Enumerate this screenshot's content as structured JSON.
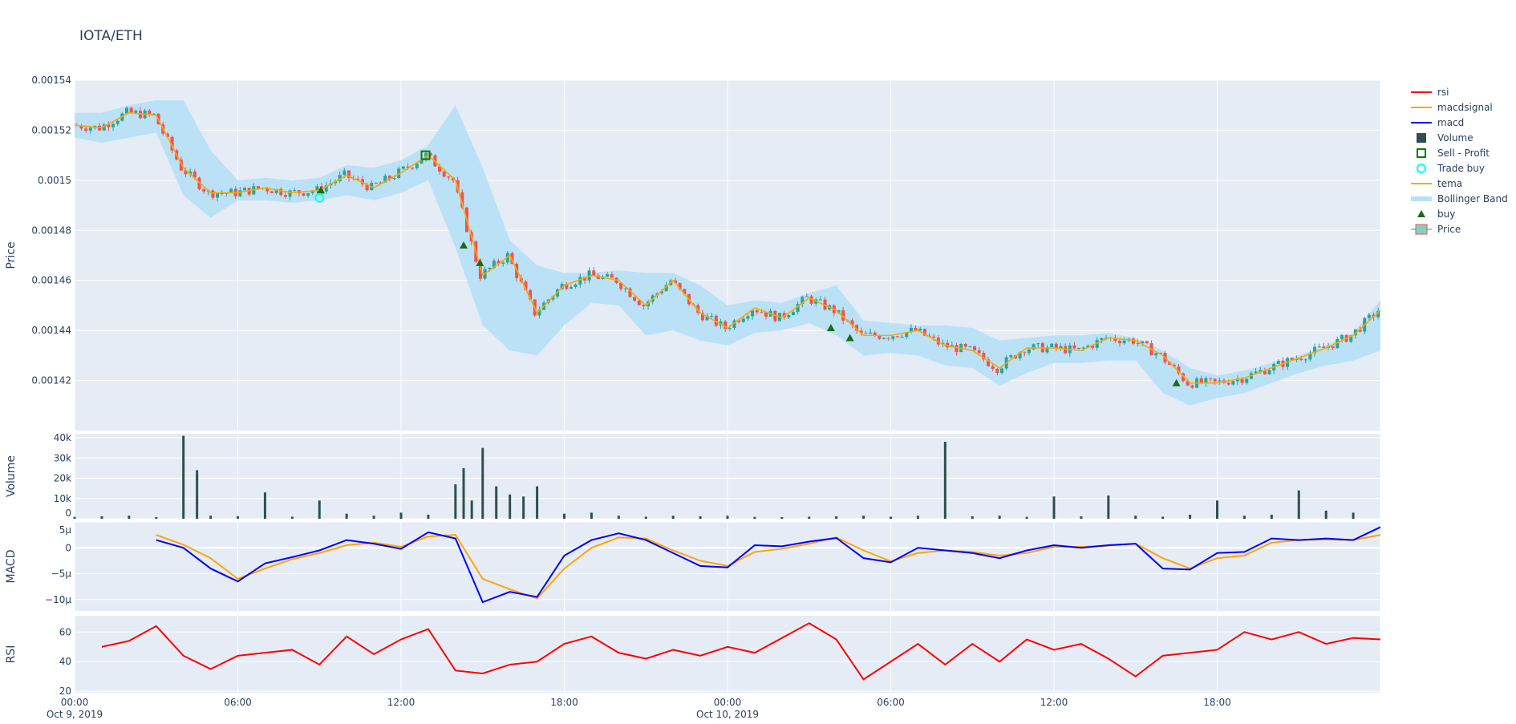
{
  "title": "IOTA/ETH",
  "colors": {
    "bg": "#e5ecf6",
    "up": "#26a69a",
    "down": "#ef5350",
    "bb": "#b8e0f7",
    "tema": "#ffa500",
    "macd": "#0000ff",
    "signal": "#ffa500",
    "rsi": "#ff0000",
    "volume": "#2f4f4f",
    "buy": "#1a6b1a",
    "sell": "#008000",
    "tradebuy": "#00ffff"
  },
  "legend": [
    "rsi",
    "macdsignal",
    "macd",
    "Volume",
    "Sell - Profit",
    "Trade buy",
    "tema",
    "Bollinger Band",
    "buy",
    "Price"
  ],
  "chart_data": [
    {
      "type": "candlestick",
      "ylabel": "Price",
      "ylim": [
        0.0014,
        0.00154
      ],
      "yticks": [
        "0.00142",
        "0.00144",
        "0.00146",
        "0.00148",
        "0.0015",
        "0.00152",
        "0.00154"
      ],
      "xticks": [
        "00:00\nOct 9, 2019",
        "06:00",
        "12:00",
        "18:00",
        "00:00\nOct 10, 2019",
        "06:00",
        "12:00",
        "18:00"
      ],
      "x_hours_range": [
        0,
        48
      ],
      "close": [
        0.001522,
        0.001521,
        0.001527,
        0.001526,
        0.001505,
        0.001495,
        0.001495,
        0.001497,
        0.001495,
        0.001496,
        0.001502,
        0.001497,
        0.001503,
        0.00151,
        0.0015,
        0.001462,
        0.00147,
        0.001447,
        0.001458,
        0.001462,
        0.00146,
        0.00145,
        0.00146,
        0.001447,
        0.001441,
        0.001449,
        0.001445,
        0.001453,
        0.001448,
        0.001438,
        0.001438,
        0.00144,
        0.001434,
        0.001432,
        0.001425,
        0.001433,
        0.001433,
        0.001432,
        0.001437,
        0.001436,
        0.00143,
        0.001419,
        0.001419,
        0.001421,
        0.001425,
        0.001429,
        0.001433,
        0.001438,
        0.001448
      ],
      "bb_upper": [
        0.001527,
        0.001527,
        0.00153,
        0.001532,
        0.001532,
        0.001512,
        0.0015,
        0.001501,
        0.0015,
        0.001501,
        0.001506,
        0.001505,
        0.001508,
        0.001514,
        0.00153,
        0.001505,
        0.001476,
        0.001466,
        0.001463,
        0.001463,
        0.001464,
        0.001463,
        0.001463,
        0.001458,
        0.00145,
        0.001452,
        0.001451,
        0.001455,
        0.001458,
        0.001444,
        0.001443,
        0.001442,
        0.001442,
        0.001441,
        0.001436,
        0.001437,
        0.001438,
        0.001438,
        0.001439,
        0.001437,
        0.001432,
        0.001425,
        0.001422,
        0.001424,
        0.001427,
        0.00143,
        0.001434,
        0.001439,
        0.001452
      ],
      "bb_lower": [
        0.001517,
        0.001515,
        0.001517,
        0.001519,
        0.001494,
        0.001485,
        0.001492,
        0.001492,
        0.001491,
        0.001492,
        0.001494,
        0.001492,
        0.001495,
        0.0015,
        0.001473,
        0.001442,
        0.001432,
        0.00143,
        0.001442,
        0.001451,
        0.00145,
        0.001438,
        0.00144,
        0.001436,
        0.001434,
        0.001439,
        0.00144,
        0.001443,
        0.001438,
        0.00143,
        0.001431,
        0.00143,
        0.001426,
        0.001425,
        0.001418,
        0.001423,
        0.001427,
        0.001427,
        0.001428,
        0.001428,
        0.001415,
        0.00141,
        0.001413,
        0.001415,
        0.001419,
        0.001423,
        0.001426,
        0.001428,
        0.001432
      ],
      "buy": [
        [
          9.05,
          0.001496
        ],
        [
          14.3,
          0.001474
        ],
        [
          14.9,
          0.001467
        ],
        [
          27.8,
          0.001441
        ],
        [
          28.5,
          0.001437
        ],
        [
          40.5,
          0.001419
        ]
      ],
      "trade_buy": [
        [
          9.0,
          0.001493
        ]
      ],
      "sell_profit": [
        [
          12.9,
          0.00151
        ]
      ]
    },
    {
      "type": "bar",
      "ylabel": "Volume",
      "ylim": [
        0,
        42000
      ],
      "yticks": [
        "0",
        "10k",
        "20k",
        "30k",
        "40k"
      ],
      "x": [
        0,
        1,
        2,
        3,
        4,
        4.5,
        5,
        6,
        7,
        8,
        9,
        10,
        11,
        12,
        13,
        14,
        14.3,
        14.6,
        15,
        15.5,
        16,
        16.5,
        17,
        18,
        19,
        20,
        21,
        22,
        23,
        24,
        25,
        26,
        27,
        28,
        29,
        30,
        31,
        32,
        33,
        34,
        35,
        36,
        37,
        38,
        39,
        40,
        41,
        42,
        43,
        44,
        45,
        46,
        47
      ],
      "values": [
        900,
        1200,
        1500,
        800,
        41000,
        24000,
        1500,
        1200,
        13000,
        1000,
        9000,
        2500,
        1500,
        3000,
        2000,
        17000,
        25000,
        9000,
        35000,
        16000,
        12000,
        11000,
        16000,
        2500,
        3000,
        1500,
        1000,
        1500,
        1200,
        1500,
        900,
        800,
        1000,
        1200,
        1500,
        1000,
        1500,
        38000,
        1200,
        1500,
        900,
        11000,
        1200,
        11500,
        1500,
        1000,
        2000,
        9000,
        1500,
        2000,
        14000,
        4000,
        3000
      ]
    },
    {
      "type": "line",
      "ylabel": "MACD",
      "ylim": [
        -12.2,
        5
      ],
      "yticks": [
        "−10µ",
        "−5µ",
        "0",
        "5µ"
      ],
      "x": [
        3,
        4,
        5,
        6,
        7,
        8,
        9,
        10,
        11,
        12,
        13,
        14,
        15,
        16,
        17,
        18,
        19,
        20,
        21,
        22,
        23,
        24,
        25,
        26,
        27,
        28,
        29,
        30,
        31,
        32,
        33,
        34,
        35,
        36,
        37,
        38,
        39,
        40,
        41,
        42,
        43,
        44,
        45,
        46,
        47,
        48
      ],
      "series": [
        {
          "name": "macd",
          "values": [
            1.5,
            0,
            -4,
            -6.5,
            -3,
            -1.8,
            -0.5,
            1.5,
            0.8,
            -0.2,
            3,
            1.8,
            -10.5,
            -8.5,
            -9.5,
            -1.5,
            1.5,
            2.8,
            1.5,
            -1,
            -3.5,
            -3.8,
            0.5,
            0.3,
            1.2,
            1.9,
            -2,
            -2.8,
            0,
            -0.5,
            -1,
            -2,
            -0.5,
            0.5,
            0,
            0.5,
            0.8,
            -4,
            -4.2,
            -1,
            -0.8,
            1.8,
            1.5,
            1.8,
            1.5,
            4
          ]
        },
        {
          "name": "macdsignal",
          "values": [
            2.5,
            0.6,
            -2,
            -6,
            -4,
            -2.2,
            -1,
            0.5,
            1,
            0.2,
            2.2,
            2.5,
            -6,
            -8,
            -9.8,
            -4,
            0,
            2,
            1.8,
            -0.5,
            -2.5,
            -3.5,
            -0.8,
            -0.2,
            0.8,
            2,
            -0.5,
            -2.6,
            -1,
            -0.5,
            -0.8,
            -1.5,
            -1,
            0.2,
            0.2,
            0.4,
            0.8,
            -2,
            -4,
            -2,
            -1.5,
            1,
            1.5,
            1.6,
            1.5,
            2.5
          ]
        }
      ]
    },
    {
      "type": "line",
      "ylabel": "RSI",
      "ylim": [
        19,
        71
      ],
      "yticks": [
        "20",
        "40",
        "60"
      ],
      "x": [
        1,
        2,
        3,
        4,
        5,
        6,
        7,
        8,
        9,
        10,
        11,
        12,
        13,
        14,
        15,
        16,
        17,
        18,
        19,
        20,
        21,
        22,
        23,
        24,
        25,
        26,
        27,
        28,
        29,
        30,
        31,
        32,
        33,
        34,
        35,
        36,
        37,
        38,
        39,
        40,
        41,
        42,
        43,
        44,
        45,
        46,
        47,
        48
      ],
      "series": [
        {
          "name": "rsi",
          "values": [
            50,
            54,
            64,
            44,
            35,
            44,
            46,
            48,
            38,
            57,
            45,
            55,
            62,
            34,
            32,
            38,
            40,
            52,
            57,
            46,
            42,
            48,
            44,
            50,
            46,
            56,
            66,
            55,
            28,
            40,
            52,
            38,
            52,
            40,
            55,
            48,
            52,
            42,
            30,
            44,
            46,
            48,
            60,
            55,
            60,
            52,
            56,
            55
          ]
        }
      ]
    }
  ]
}
